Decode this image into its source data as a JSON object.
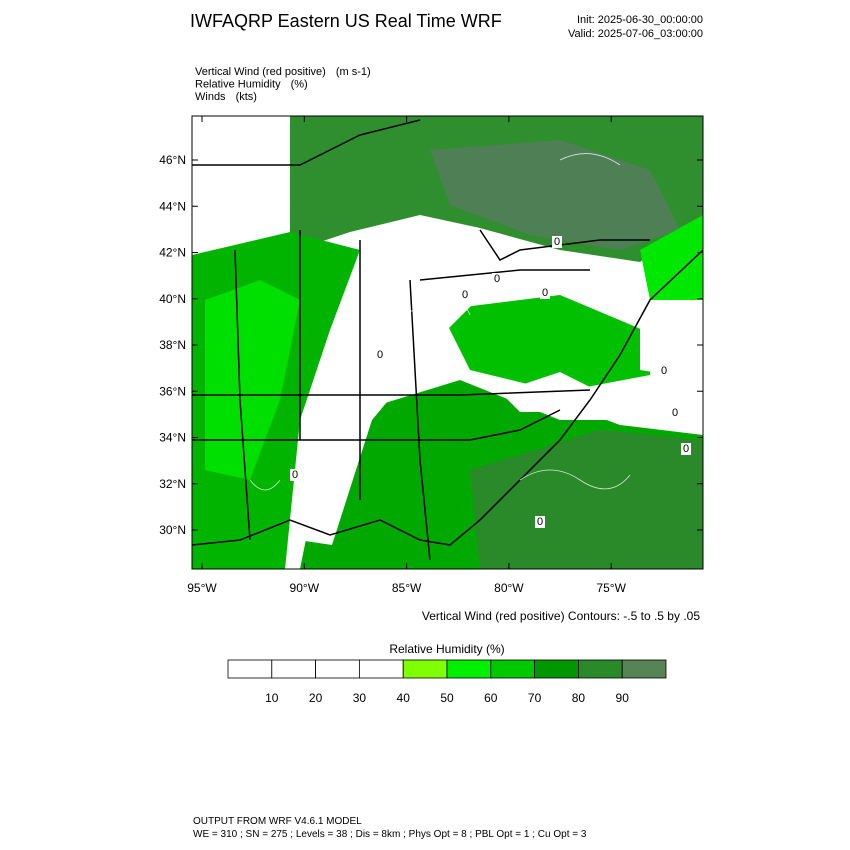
{
  "header": {
    "title": "IWFAQRP Eastern US Real Time WRF",
    "init": "Init: 2025-06-30_00:00:00",
    "valid": "Valid: 2025-07-06_03:00:00"
  },
  "fields": [
    {
      "name": "Vertical Wind (red positive)",
      "unit": "(m s-1)"
    },
    {
      "name": "Relative Humidity",
      "unit": "(%)"
    },
    {
      "name": "Winds",
      "unit": "(kts)"
    }
  ],
  "map": {
    "lat_labels": [
      "46°N",
      "44°N",
      "42°N",
      "40°N",
      "38°N",
      "36°N",
      "34°N",
      "32°N",
      "30°N"
    ],
    "lon_labels": [
      "95°W",
      "90°W",
      "85°W",
      "80°W",
      "75°W"
    ],
    "contour_labels": [
      "0",
      "0",
      "0",
      "0",
      "0",
      "0",
      "0",
      "0",
      "0",
      "0"
    ],
    "contour_note": "Vertical Wind (red positive) Contours: -.5 to .5 by .05"
  },
  "colorbar": {
    "title": "Relative Humidity  (%)",
    "labels": [
      10,
      20,
      30,
      40,
      50,
      60,
      70,
      80,
      90
    ],
    "colors": [
      "#ffffff",
      "#ffffff",
      "#ffffff",
      "#ffffff",
      "#80ff00",
      "#00f000",
      "#00c800",
      "#009600",
      "#2a8a2a",
      "#568456"
    ]
  },
  "footer": {
    "line1": "OUTPUT FROM WRF V4.6.1 MODEL",
    "line2": "WE = 310 ; SN = 275 ; Levels = 38 ; Dis = 8km ; Phys Opt = 8 ; PBL Opt = 1 ; Cu Opt = 3"
  }
}
